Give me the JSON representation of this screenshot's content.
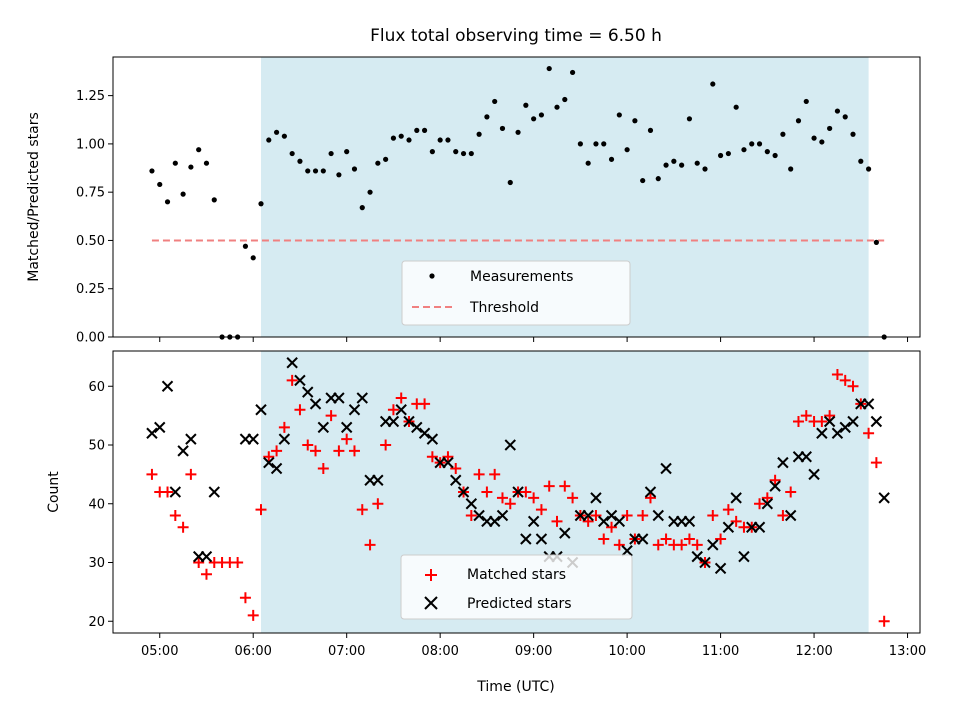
{
  "colors": {
    "shade": "#add8e6",
    "measurement": "#000000",
    "threshold": "#f08080",
    "matched": "#ff0000",
    "predicted": "#000000"
  },
  "chart_data": [
    {
      "type": "scatter",
      "title": "Flux total observing time = 6.50 h",
      "ylabel": "Matched/Predicted stars",
      "xlim": [
        "04:30",
        "13:08"
      ],
      "ylim": [
        0,
        1.45
      ],
      "yticks": [
        "0.00",
        "0.25",
        "0.50",
        "0.75",
        "1.00",
        "1.25"
      ],
      "shaded_span": [
        "06:05",
        "12:35"
      ],
      "legend": {
        "position": "lower center",
        "entries": [
          "Measurements",
          "Threshold"
        ]
      },
      "threshold": {
        "name": "Threshold",
        "y": 0.5,
        "x_range": [
          "04:55",
          "12:45"
        ]
      },
      "series": [
        {
          "name": "Measurements",
          "x": [
            "04:55",
            "05:00",
            "05:05",
            "05:10",
            "05:15",
            "05:20",
            "05:25",
            "05:30",
            "05:35",
            "05:40",
            "05:45",
            "05:50",
            "05:55",
            "06:00",
            "06:05",
            "06:10",
            "06:15",
            "06:20",
            "06:25",
            "06:30",
            "06:35",
            "06:40",
            "06:45",
            "06:50",
            "06:55",
            "07:00",
            "07:05",
            "07:10",
            "07:15",
            "07:20",
            "07:25",
            "07:30",
            "07:35",
            "07:40",
            "07:45",
            "07:50",
            "07:55",
            "08:00",
            "08:05",
            "08:10",
            "08:15",
            "08:20",
            "08:25",
            "08:30",
            "08:35",
            "08:40",
            "08:45",
            "08:50",
            "08:55",
            "09:00",
            "09:05",
            "09:10",
            "09:15",
            "09:20",
            "09:25",
            "09:30",
            "09:35",
            "09:40",
            "09:45",
            "09:50",
            "09:55",
            "10:00",
            "10:05",
            "10:10",
            "10:15",
            "10:20",
            "10:25",
            "10:30",
            "10:35",
            "10:40",
            "10:45",
            "10:50",
            "10:55",
            "11:00",
            "11:05",
            "11:10",
            "11:15",
            "11:20",
            "11:25",
            "11:30",
            "11:35",
            "11:40",
            "11:45",
            "11:50",
            "11:55",
            "12:00",
            "12:05",
            "12:10",
            "12:15",
            "12:20",
            "12:25",
            "12:30",
            "12:35",
            "12:40",
            "12:45"
          ],
          "y": [
            0.86,
            0.79,
            0.7,
            0.9,
            0.74,
            0.88,
            0.97,
            0.9,
            0.71,
            0.0,
            0.0,
            0.0,
            0.47,
            0.41,
            0.69,
            1.02,
            1.06,
            1.04,
            0.95,
            0.91,
            0.86,
            0.86,
            0.86,
            0.95,
            0.84,
            0.96,
            0.87,
            0.67,
            0.75,
            0.9,
            0.92,
            1.03,
            1.04,
            1.02,
            1.07,
            1.07,
            0.96,
            1.02,
            1.02,
            0.96,
            0.95,
            0.95,
            1.05,
            1.14,
            1.22,
            1.08,
            0.8,
            1.06,
            1.2,
            1.13,
            1.15,
            1.39,
            1.19,
            1.23,
            1.37,
            1.0,
            0.9,
            1.0,
            1.0,
            0.92,
            1.15,
            0.97,
            1.12,
            0.81,
            1.07,
            0.82,
            0.89,
            0.91,
            0.89,
            1.13,
            0.9,
            0.87,
            1.31,
            0.94,
            0.95,
            1.19,
            0.97,
            1.0,
            1.0,
            0.96,
            0.94,
            1.05,
            0.87,
            1.12,
            1.22,
            1.03,
            1.01,
            1.08,
            1.17,
            1.14,
            1.05,
            0.91,
            0.87,
            0.49,
            0.0
          ]
        }
      ]
    },
    {
      "type": "scatter",
      "xlabel": "Time (UTC)",
      "ylabel": "Count",
      "xlim": [
        "04:30",
        "13:08"
      ],
      "ylim": [
        18,
        66
      ],
      "xticks": [
        "05:00",
        "06:00",
        "07:00",
        "08:00",
        "09:00",
        "10:00",
        "11:00",
        "12:00",
        "13:00"
      ],
      "yticks": [
        "20",
        "30",
        "40",
        "50",
        "60"
      ],
      "shaded_span": [
        "06:05",
        "12:35"
      ],
      "legend": {
        "position": "lower center",
        "entries": [
          "Matched stars",
          "Predicted stars"
        ]
      },
      "series": [
        {
          "name": "Matched stars",
          "x": [
            "04:55",
            "05:00",
            "05:05",
            "05:10",
            "05:15",
            "05:20",
            "05:25",
            "05:30",
            "05:35",
            "05:40",
            "05:45",
            "05:50",
            "05:55",
            "06:00",
            "06:05",
            "06:10",
            "06:15",
            "06:20",
            "06:25",
            "06:30",
            "06:35",
            "06:40",
            "06:45",
            "06:50",
            "06:55",
            "07:00",
            "07:05",
            "07:10",
            "07:15",
            "07:20",
            "07:25",
            "07:30",
            "07:35",
            "07:40",
            "07:45",
            "07:50",
            "07:55",
            "08:00",
            "08:05",
            "08:10",
            "08:15",
            "08:20",
            "08:25",
            "08:30",
            "08:35",
            "08:40",
            "08:45",
            "08:50",
            "08:55",
            "09:00",
            "09:05",
            "09:10",
            "09:15",
            "09:20",
            "09:25",
            "09:30",
            "09:35",
            "09:40",
            "09:45",
            "09:50",
            "09:55",
            "10:00",
            "10:05",
            "10:10",
            "10:15",
            "10:20",
            "10:25",
            "10:30",
            "10:35",
            "10:40",
            "10:45",
            "10:50",
            "10:55",
            "11:00",
            "11:05",
            "11:10",
            "11:15",
            "11:20",
            "11:25",
            "11:30",
            "11:35",
            "11:40",
            "11:45",
            "11:50",
            "11:55",
            "12:00",
            "12:05",
            "12:10",
            "12:15",
            "12:20",
            "12:25",
            "12:30",
            "12:35",
            "12:40",
            "12:45"
          ],
          "y": [
            45,
            42,
            42,
            38,
            36,
            45,
            30,
            28,
            30,
            30,
            30,
            30,
            24,
            21,
            39,
            48,
            49,
            53,
            61,
            56,
            50,
            49,
            46,
            55,
            49,
            51,
            49,
            39,
            33,
            40,
            50,
            56,
            58,
            54,
            57,
            57,
            48,
            47,
            48,
            46,
            42,
            38,
            45,
            42,
            45,
            41,
            40,
            42,
            42,
            41,
            39,
            43,
            37,
            43,
            41,
            38,
            37,
            38,
            34,
            36,
            33,
            38,
            34,
            38,
            41,
            33,
            34,
            33,
            33,
            34,
            33,
            30,
            38,
            34,
            39,
            37,
            36,
            36,
            40,
            41,
            44,
            38,
            42,
            54,
            55,
            54,
            54,
            55,
            62,
            61,
            60,
            57,
            52,
            47,
            20
          ]
        },
        {
          "name": "Predicted stars",
          "x": [
            "04:55",
            "05:00",
            "05:05",
            "05:10",
            "05:15",
            "05:20",
            "05:25",
            "05:30",
            "05:35",
            "05:40",
            "05:45",
            "05:50",
            "05:55",
            "06:00",
            "06:05",
            "06:10",
            "06:15",
            "06:20",
            "06:25",
            "06:30",
            "06:35",
            "06:40",
            "06:45",
            "06:50",
            "06:55",
            "07:00",
            "07:05",
            "07:10",
            "07:15",
            "07:20",
            "07:25",
            "07:30",
            "07:35",
            "07:40",
            "07:45",
            "07:50",
            "07:55",
            "08:00",
            "08:05",
            "08:10",
            "08:15",
            "08:20",
            "08:25",
            "08:30",
            "08:35",
            "08:40",
            "08:45",
            "08:50",
            "08:55",
            "09:00",
            "09:05",
            "09:10",
            "09:15",
            "09:20",
            "09:25",
            "09:30",
            "09:35",
            "09:40",
            "09:45",
            "09:50",
            "09:55",
            "10:00",
            "10:05",
            "10:10",
            "10:15",
            "10:20",
            "10:25",
            "10:30",
            "10:35",
            "10:40",
            "10:45",
            "10:50",
            "10:55",
            "11:00",
            "11:05",
            "11:10",
            "11:15",
            "11:20",
            "11:25",
            "11:30",
            "11:35",
            "11:40",
            "11:45",
            "11:50",
            "11:55",
            "12:00",
            "12:05",
            "12:10",
            "12:15",
            "12:20",
            "12:25",
            "12:30",
            "12:35",
            "12:40",
            "12:45"
          ],
          "y": [
            52,
            53,
            60,
            42,
            49,
            51,
            31,
            31,
            42,
            null,
            null,
            null,
            51,
            51,
            56,
            47,
            46,
            51,
            64,
            61,
            59,
            57,
            53,
            58,
            58,
            53,
            56,
            58,
            44,
            44,
            54,
            54,
            56,
            54,
            53,
            52,
            51,
            47,
            47,
            44,
            42,
            40,
            38,
            37,
            37,
            38,
            50,
            42,
            34,
            37,
            34,
            31,
            31,
            35,
            30,
            38,
            38,
            41,
            37,
            38,
            37,
            32,
            34,
            34,
            42,
            38,
            46,
            37,
            37,
            37,
            31,
            30,
            33,
            29,
            36,
            41,
            31,
            36,
            36,
            40,
            43,
            47,
            38,
            48,
            48,
            45,
            52,
            54,
            52,
            53,
            54,
            57,
            57,
            54,
            41
          ]
        }
      ]
    }
  ]
}
